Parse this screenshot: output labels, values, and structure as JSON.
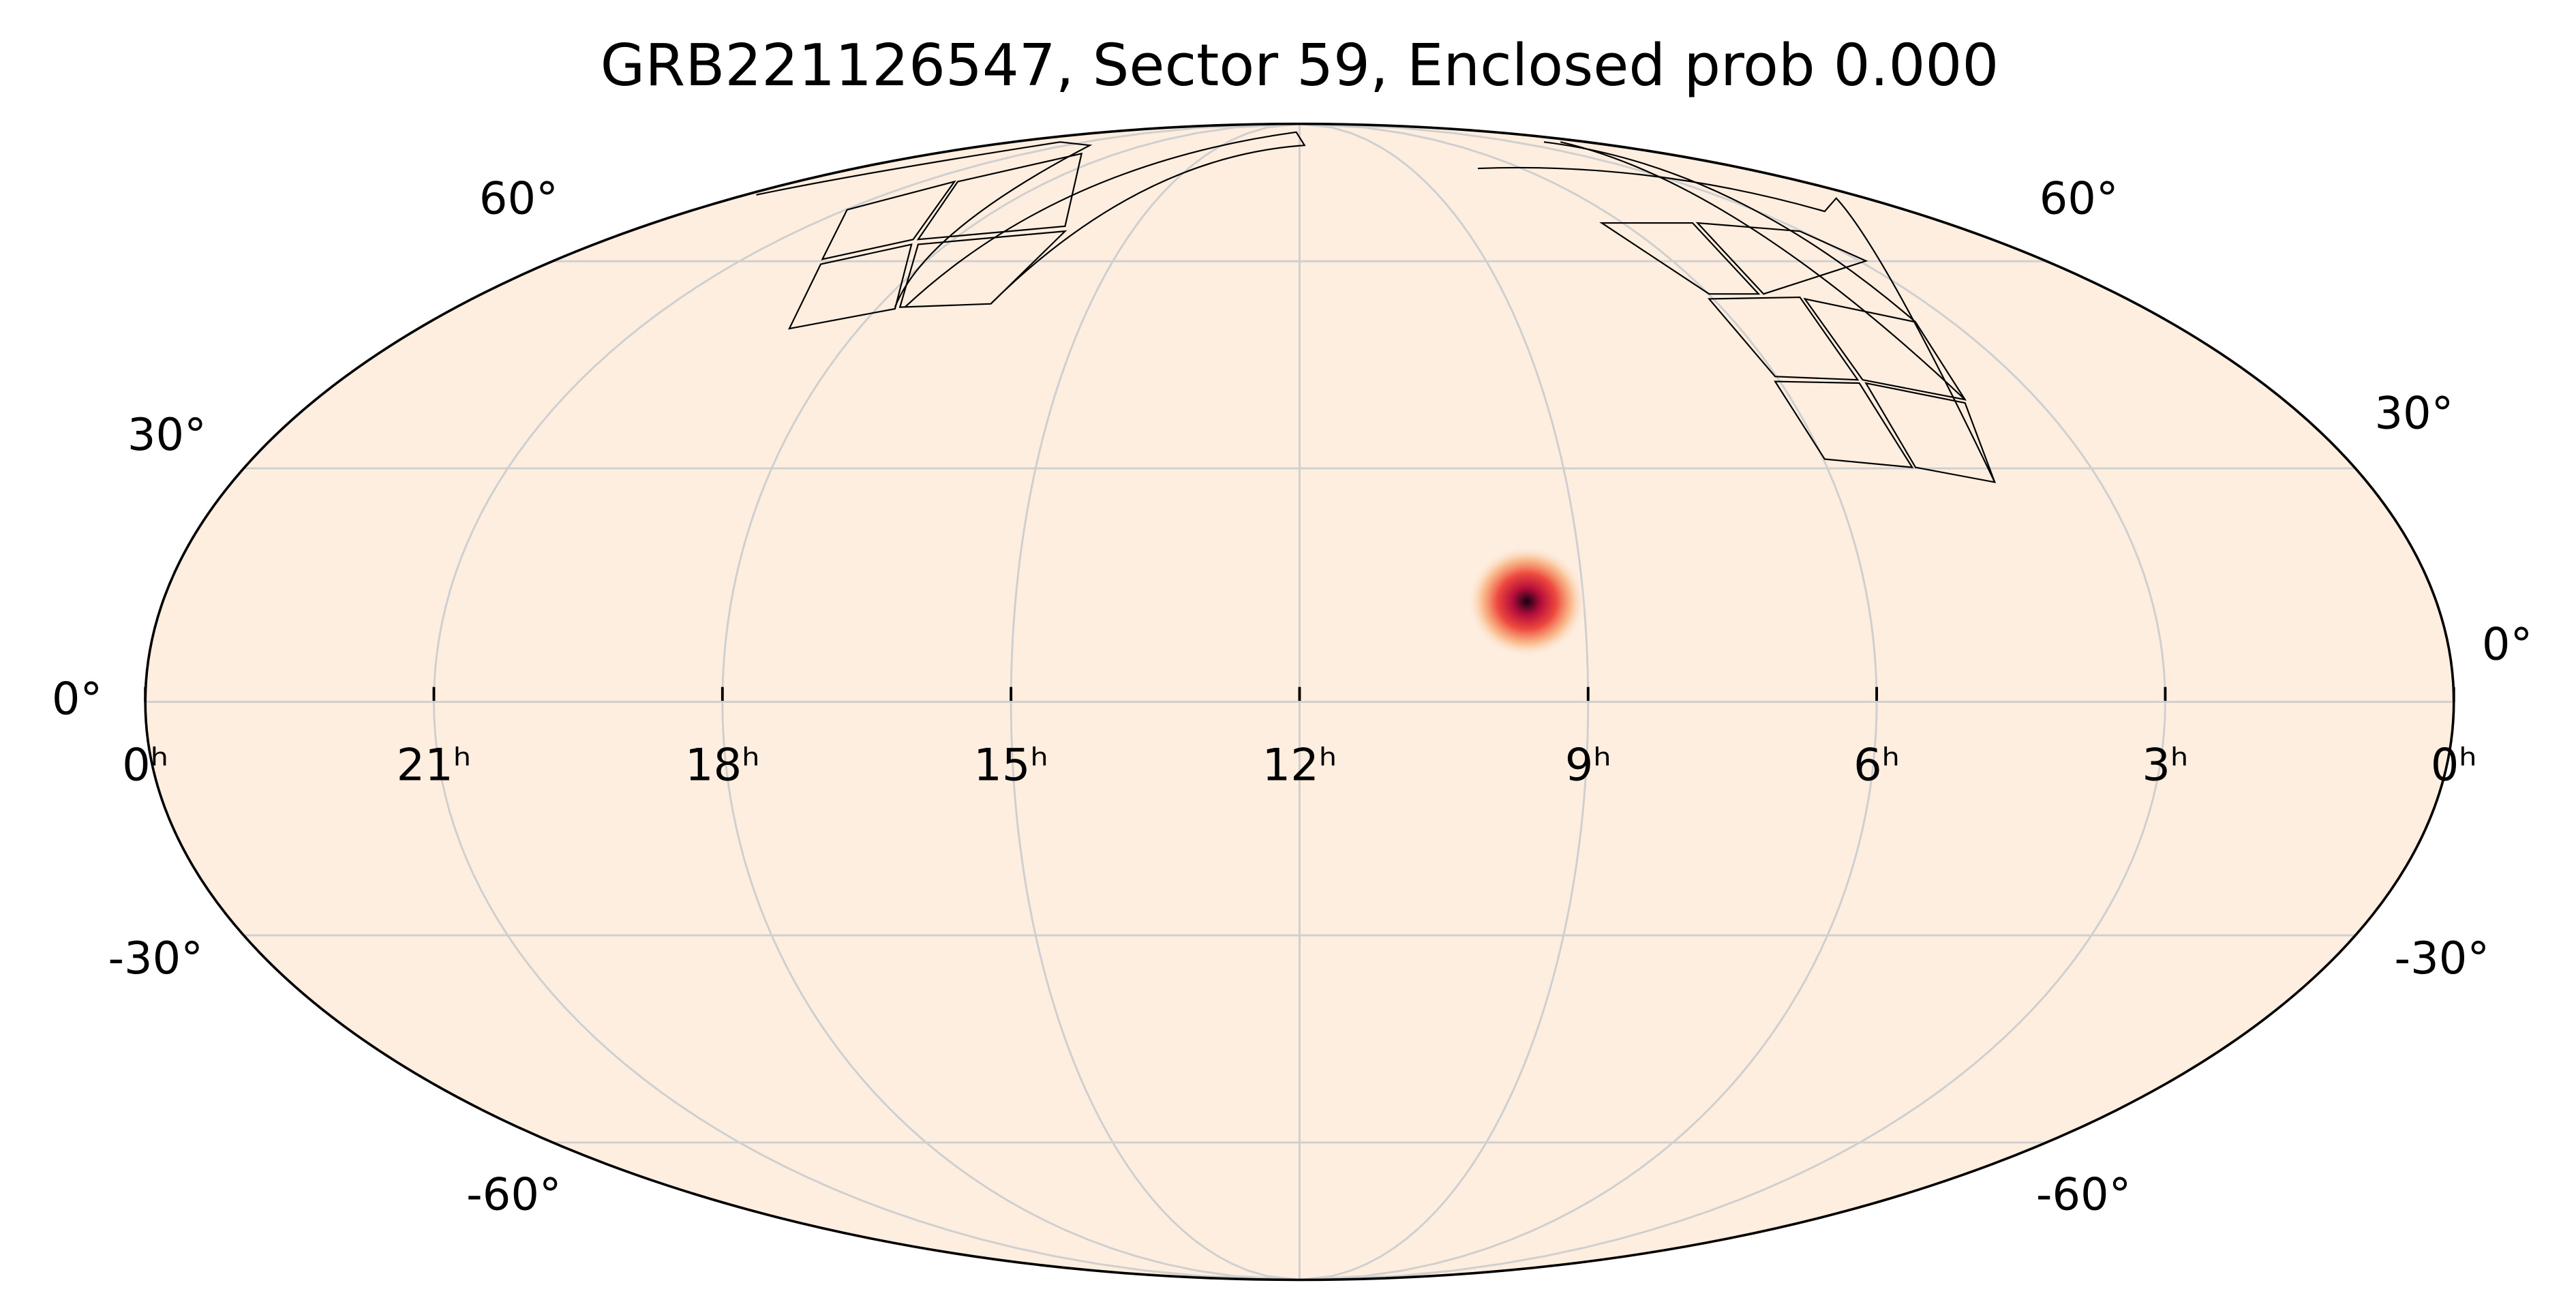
{
  "chart_data": {
    "type": "skymap",
    "title": "GRB221126547, Sector 59, Enclosed prob 0.000",
    "xlim": [
      24,
      0
    ],
    "xticks": [
      {
        "value": 24,
        "label": "0ʰ"
      },
      {
        "value": 21,
        "label": "21ʰ"
      },
      {
        "value": 18,
        "label": "18ʰ"
      },
      {
        "value": 15,
        "label": "15ʰ"
      },
      {
        "value": 12,
        "label": "12ʰ"
      },
      {
        "value": 9,
        "label": "9ʰ"
      },
      {
        "value": 6,
        "label": "6ʰ"
      },
      {
        "value": 3,
        "label": "3ʰ"
      },
      {
        "value": 0,
        "label": "0ʰ"
      }
    ],
    "ylim": [
      -90,
      90
    ],
    "yticks": [
      {
        "value": 60,
        "label": "60°"
      },
      {
        "value": 30,
        "label": "30°"
      },
      {
        "value": 0,
        "label": "0°"
      },
      {
        "value": -30,
        "label": "-30°"
      },
      {
        "value": -60,
        "label": "-60°"
      }
    ],
    "grid": true,
    "source": {
      "ra": 9.6,
      "dec": 12.7
    }
  }
}
